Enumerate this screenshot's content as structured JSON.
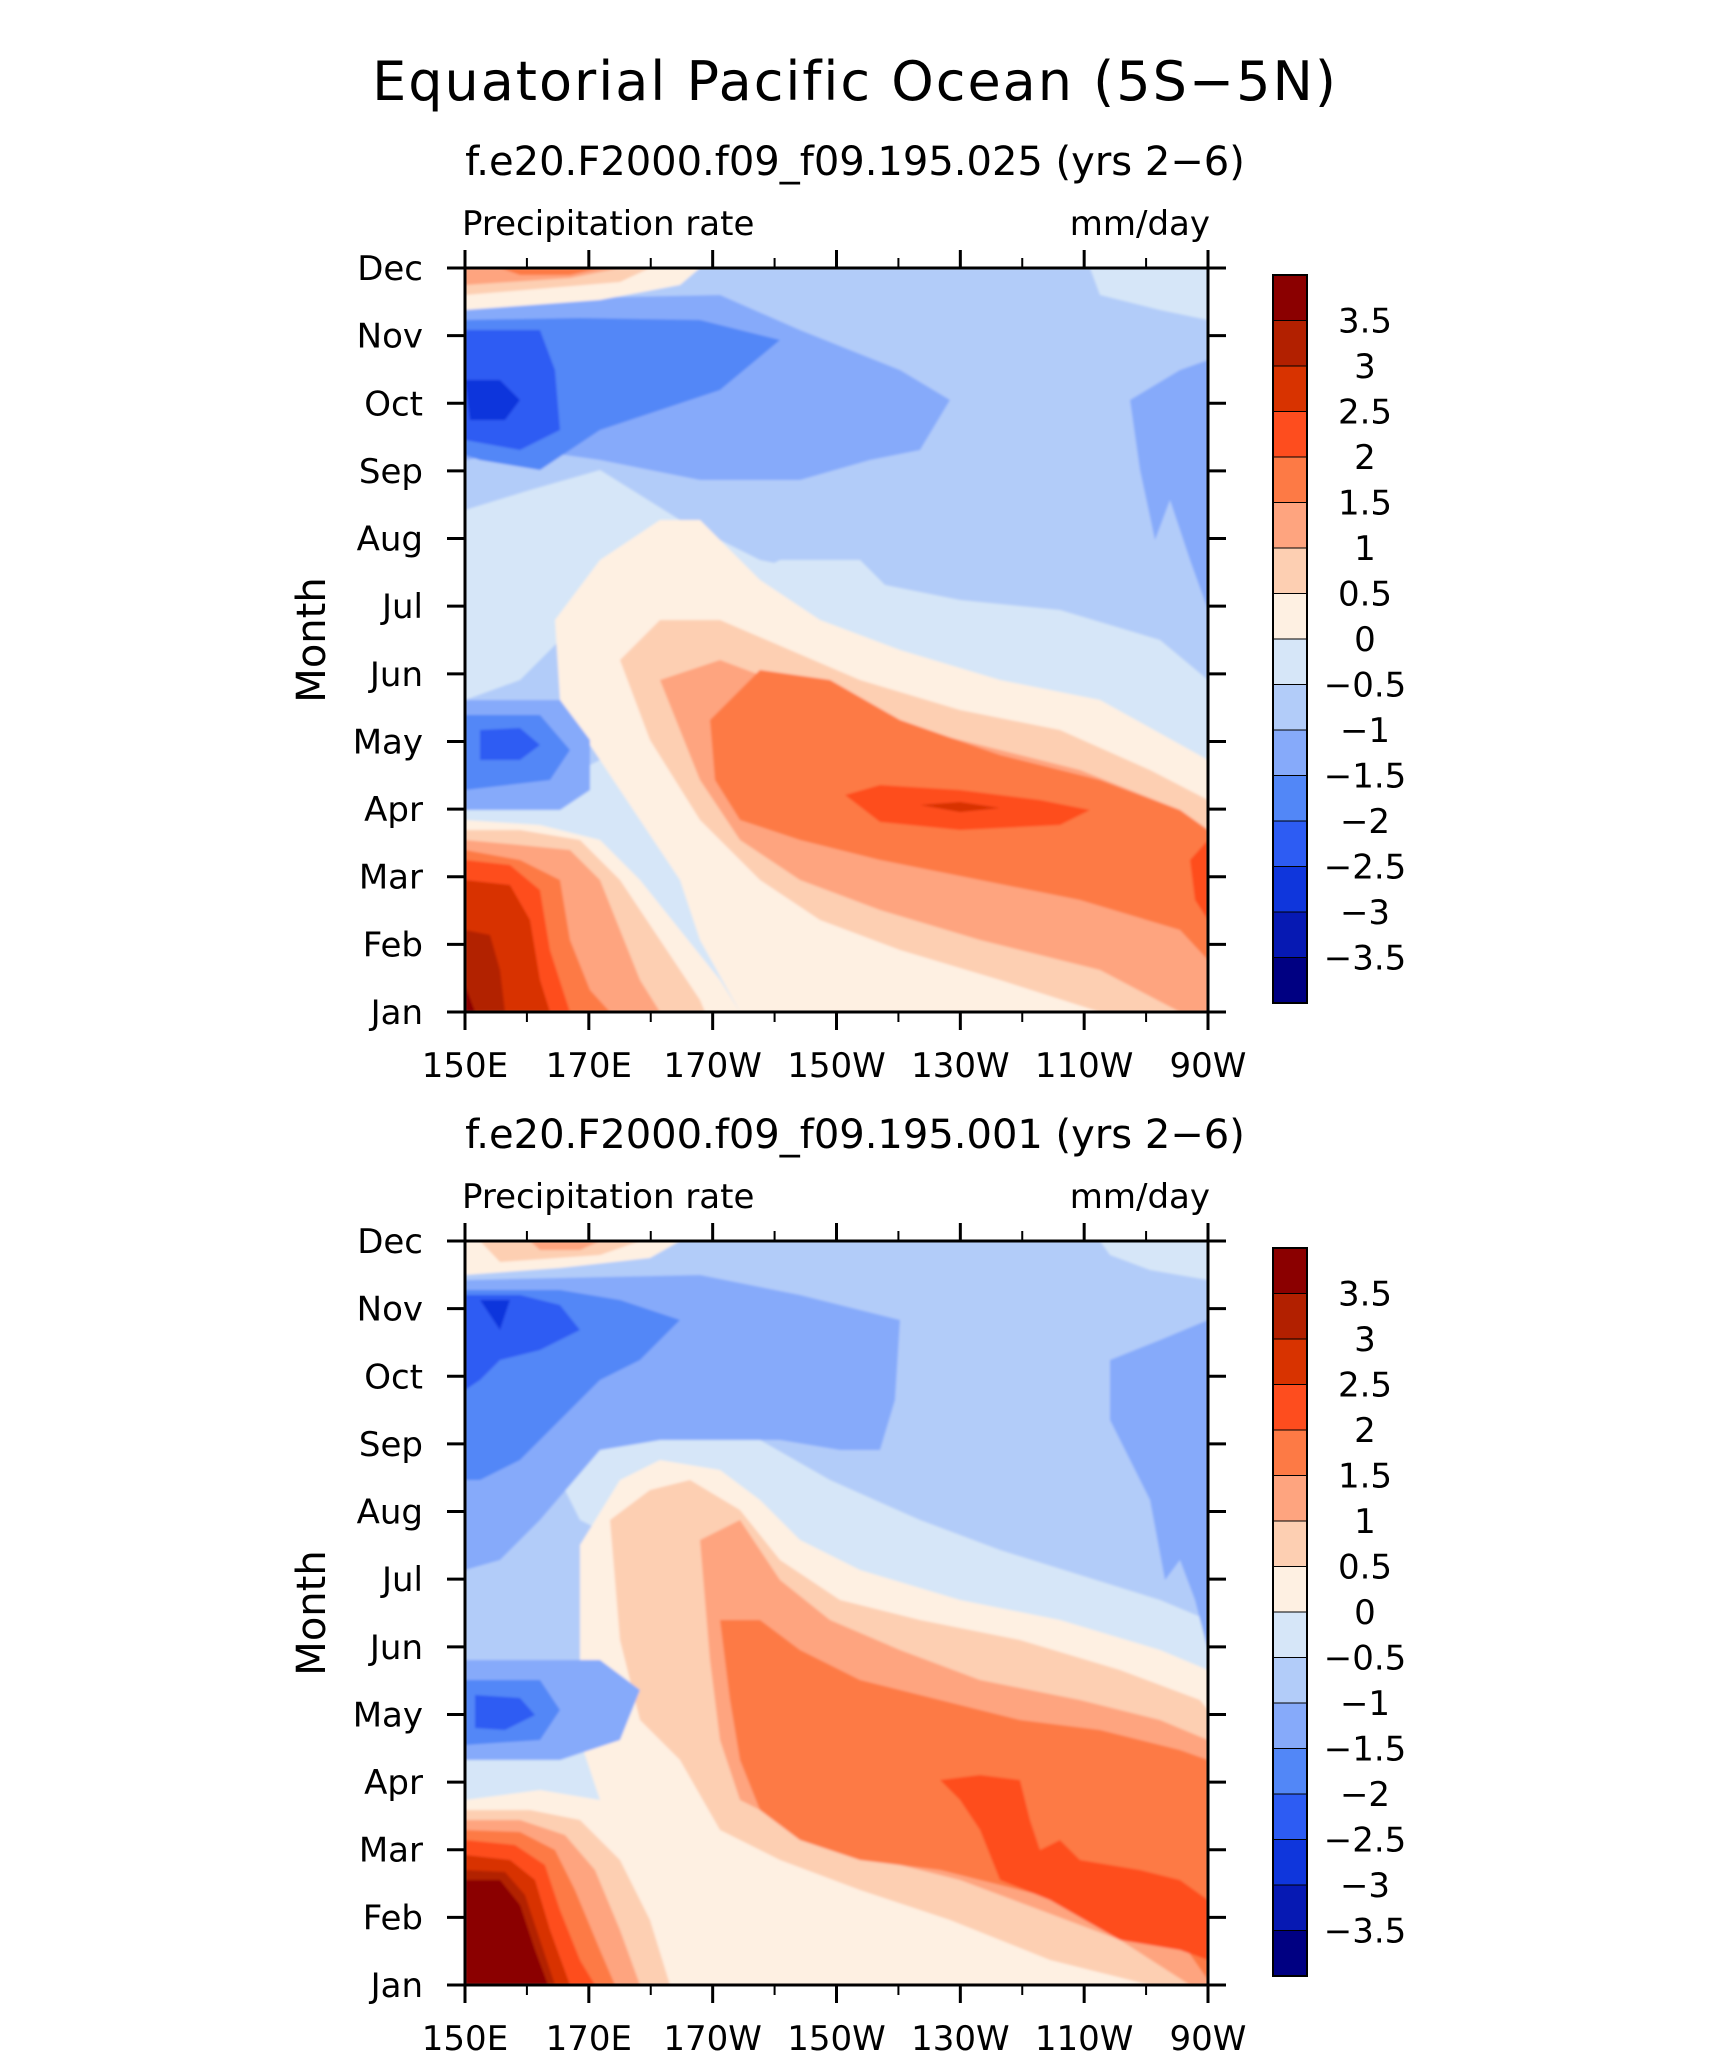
{
  "figure": {
    "title": "Equatorial Pacific Ocean (5S−5N)"
  },
  "colorbar": {
    "labels": [
      "3.5",
      "3",
      "2.5",
      "2",
      "1.5",
      "1",
      "0.5",
      "0",
      "−0.5",
      "−1",
      "−1.5",
      "−2",
      "−2.5",
      "−3",
      "−3.5"
    ],
    "levels": [
      -3.5,
      -3,
      -2.5,
      -2,
      -1.5,
      -1,
      -0.5,
      0,
      0.5,
      1,
      1.5,
      2,
      2.5,
      3,
      3.5
    ],
    "colors_top_to_bottom": [
      "#8b0000",
      "#b22000",
      "#d83300",
      "#fe4d1e",
      "#fd7a45",
      "#fea47f",
      "#fdcfb2",
      "#fef0e2",
      "#d6e6f8",
      "#b2ccf9",
      "#86aafa",
      "#5287f7",
      "#2d5cf3",
      "#0f36dc",
      "#0619b3",
      "#000082"
    ]
  },
  "chart_data": [
    {
      "type": "heatmap",
      "title": "f.e20.F2000.f09_f09.195.025 (yrs 2−6)",
      "left_label": "Precipitation rate",
      "right_label": "mm/day",
      "ylabel": "Month",
      "xlabel": "",
      "x_ticks": [
        "150E",
        "170E",
        "170W",
        "150W",
        "130W",
        "110W",
        "90W"
      ],
      "x_range": [
        "150E",
        "90W"
      ],
      "y_ticks": [
        "Jan",
        "Feb",
        "Mar",
        "Apr",
        "May",
        "Jun",
        "Jul",
        "Aug",
        "Sep",
        "Oct",
        "Nov",
        "Dec"
      ],
      "levels": [
        -3.5,
        -3,
        -2.5,
        -2,
        -1.5,
        -1,
        -0.5,
        0,
        0.5,
        1,
        1.5,
        2,
        2.5,
        3,
        3.5
      ],
      "features": [
        {
          "region": "150E-165E, Jan-Feb",
          "value": ">3"
        },
        {
          "region": "150E-175E, Feb-Mar",
          "value": "1.5 to 3"
        },
        {
          "region": "165W-110W, Apr-May",
          "value": "1.5 to 2.5"
        },
        {
          "region": "135W, Apr",
          "value": "2.5"
        },
        {
          "region": "150E-160E, May",
          "value": "-2.5"
        },
        {
          "region": "150E-175E, Oct-Nov",
          "value": "-2 to -2.5"
        },
        {
          "region": "150W-90W, Aug-Dec",
          "value": "-0.5 to -1"
        },
        {
          "region": "95W, Aug-Oct",
          "value": "-1.5"
        },
        {
          "region": "150E-170E, Dec",
          "value": "1 to 2"
        }
      ]
    },
    {
      "type": "heatmap",
      "title": "f.e20.F2000.f09_f09.195.001 (yrs 2−6)",
      "left_label": "Precipitation rate",
      "right_label": "mm/day",
      "ylabel": "Month",
      "xlabel": "",
      "x_ticks": [
        "150E",
        "170E",
        "170W",
        "150W",
        "130W",
        "110W",
        "90W"
      ],
      "x_range": [
        "150E",
        "90W"
      ],
      "y_ticks": [
        "Jan",
        "Feb",
        "Mar",
        "Apr",
        "May",
        "Jun",
        "Jul",
        "Aug",
        "Sep",
        "Oct",
        "Nov",
        "Dec"
      ],
      "levels": [
        -3.5,
        -3,
        -2.5,
        -2,
        -1.5,
        -1,
        -0.5,
        0,
        0.5,
        1,
        1.5,
        2,
        2.5,
        3,
        3.5
      ],
      "features": [
        {
          "region": "150E-168E, Jan-Feb",
          "value": ">3.5"
        },
        {
          "region": "150E-175E, Feb-Mar",
          "value": "1.5 to 3"
        },
        {
          "region": "155W-95W, Mar-Apr",
          "value": "1.5 to 2"
        },
        {
          "region": "125W-110W, Mar-Apr",
          "value": "2"
        },
        {
          "region": "150E-162E, May",
          "value": "-2.5"
        },
        {
          "region": "150E-170E, Oct-Nov",
          "value": "-2 to -2.5"
        },
        {
          "region": "140W-90W, Aug-Dec",
          "value": "-0.5 to -1"
        },
        {
          "region": "100W-90W, Jun-Oct",
          "value": "-1.5"
        },
        {
          "region": "165E-150W, Jun-Aug",
          "value": "0.5 to 1"
        }
      ]
    }
  ]
}
